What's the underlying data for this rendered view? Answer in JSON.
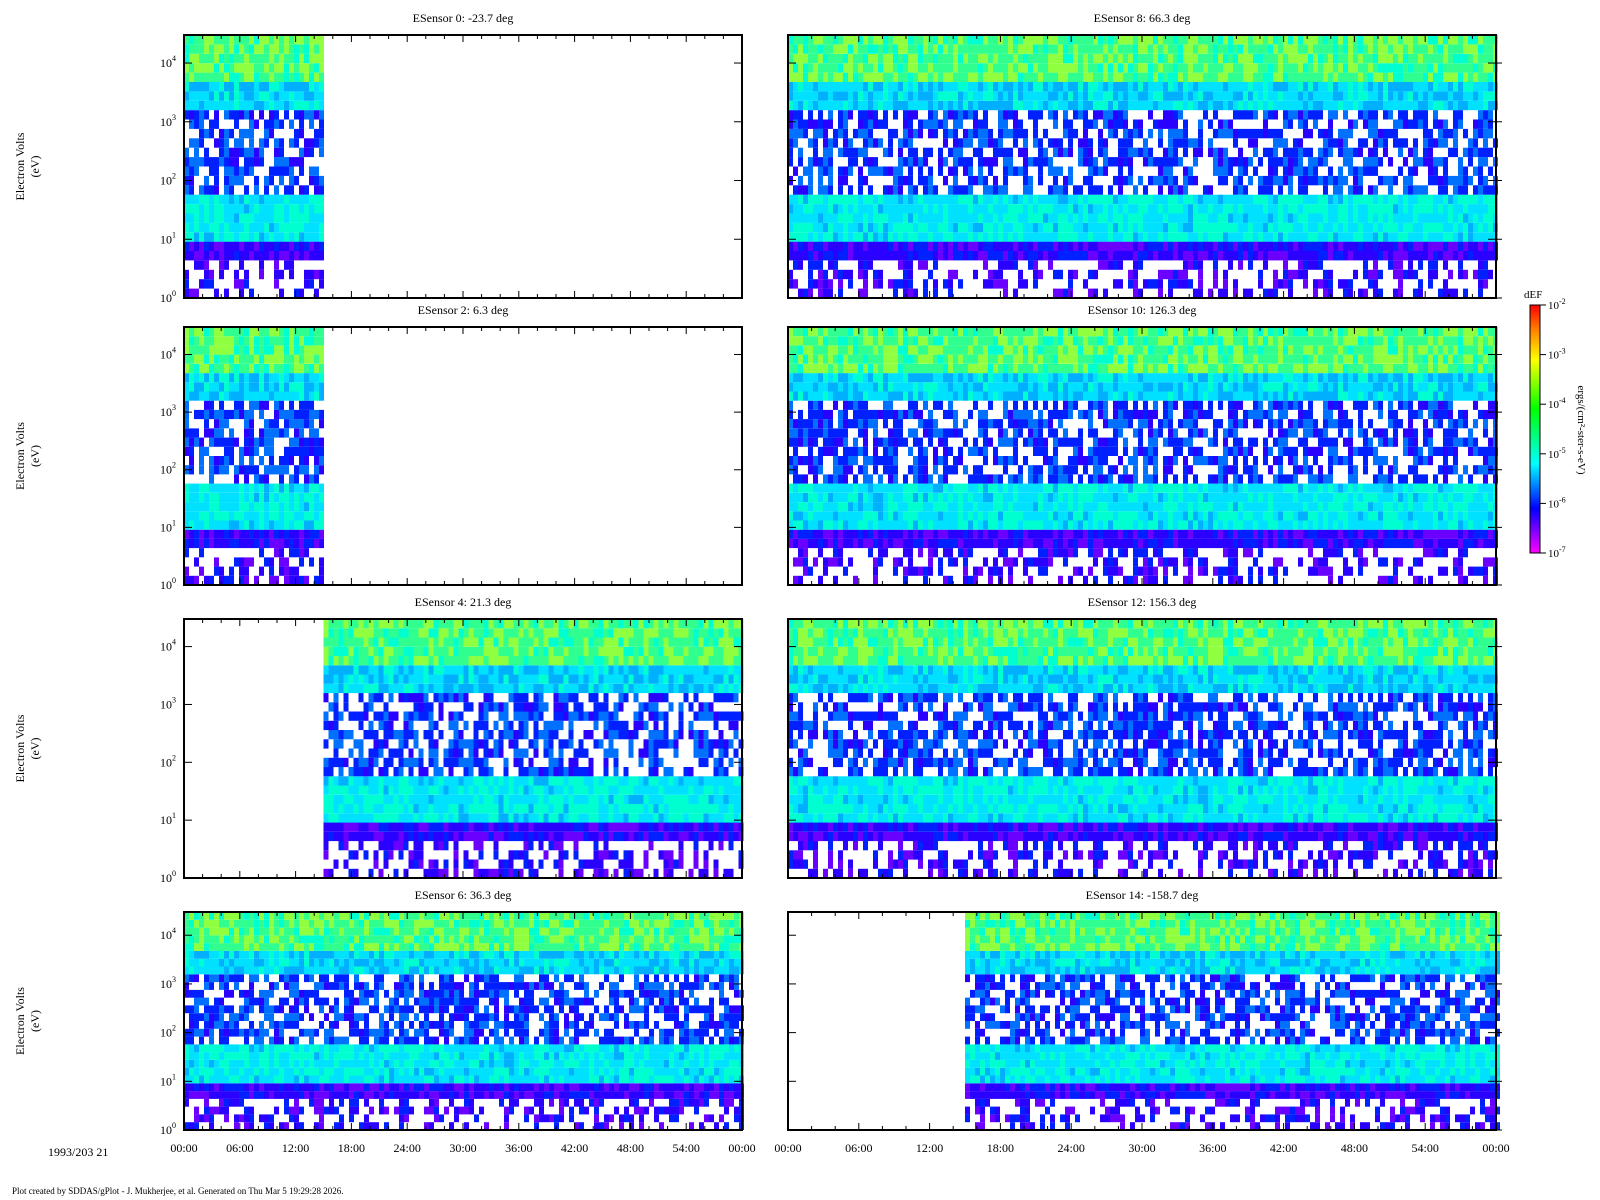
{
  "footer": "Plot created by SDDAS/gPlot - J. Mukherjee, et al.  Generated on Thu Mar 5 19:29:28 2026.",
  "date_label": "1993/203 21",
  "colorbar": {
    "title": "dEF",
    "unit": "ergs/(cm²-ster-s-eV)",
    "tick_labels": [
      "10-2",
      "10-3",
      "10-4",
      "10-5",
      "10-6",
      "10-7"
    ],
    "colors": [
      "#ff0000",
      "#ff8000",
      "#ffff00",
      "#00ff00",
      "#00ffff",
      "#0000ff",
      "#ff00ff"
    ]
  },
  "chart_data": [
    {
      "type": "heatmap",
      "title": "ESensor 0: -23.7 deg",
      "ylabel": "Electron Volts (eV)",
      "y_scale": "log",
      "ylim": [
        1,
        30000
      ],
      "y_ticks": [
        "10^0",
        "10^1",
        "10^2",
        "10^3",
        "10^4"
      ],
      "x_ticks": [
        "00:00",
        "06:00",
        "12:00",
        "18:00",
        "24:00",
        "30:00",
        "36:00",
        "42:00",
        "48:00",
        "54:00",
        "00:00"
      ],
      "data_span_minutes": [
        0,
        15
      ]
    },
    {
      "type": "heatmap",
      "title": "ESensor 2: 6.3 deg",
      "ylabel": "Electron Volts (eV)",
      "y_scale": "log",
      "ylim": [
        1,
        30000
      ],
      "y_ticks": [
        "10^0",
        "10^1",
        "10^2",
        "10^3",
        "10^4"
      ],
      "x_ticks": [
        "00:00",
        "06:00",
        "12:00",
        "18:00",
        "24:00",
        "30:00",
        "36:00",
        "42:00",
        "48:00",
        "54:00",
        "00:00"
      ],
      "data_span_minutes": [
        0,
        15
      ]
    },
    {
      "type": "heatmap",
      "title": "ESensor 4: 21.3 deg",
      "ylabel": "Electron Volts (eV)",
      "y_scale": "log",
      "ylim": [
        1,
        30000
      ],
      "y_ticks": [
        "10^0",
        "10^1",
        "10^2",
        "10^3",
        "10^4"
      ],
      "x_ticks": [
        "00:00",
        "06:00",
        "12:00",
        "18:00",
        "24:00",
        "30:00",
        "36:00",
        "42:00",
        "48:00",
        "54:00",
        "00:00"
      ],
      "data_span_minutes": [
        15,
        60
      ]
    },
    {
      "type": "heatmap",
      "title": "ESensor 6: 36.3 deg",
      "ylabel": "Electron Volts (eV)",
      "y_scale": "log",
      "ylim": [
        1,
        30000
      ],
      "y_ticks": [
        "10^0",
        "10^1",
        "10^2",
        "10^3",
        "10^4"
      ],
      "x_ticks": [
        "00:00",
        "06:00",
        "12:00",
        "18:00",
        "24:00",
        "30:00",
        "36:00",
        "42:00",
        "48:00",
        "54:00",
        "00:00"
      ],
      "data_span_minutes": [
        0,
        60
      ]
    },
    {
      "type": "heatmap",
      "title": "ESensor 8: 66.3 deg",
      "y_scale": "log",
      "ylim": [
        1,
        30000
      ],
      "x_ticks": [
        "00:00",
        "06:00",
        "12:00",
        "18:00",
        "24:00",
        "30:00",
        "36:00",
        "42:00",
        "48:00",
        "54:00",
        "00:00"
      ],
      "data_span_minutes": [
        0,
        60
      ]
    },
    {
      "type": "heatmap",
      "title": "ESensor 10: 126.3 deg",
      "y_scale": "log",
      "ylim": [
        1,
        30000
      ],
      "x_ticks": [
        "00:00",
        "06:00",
        "12:00",
        "18:00",
        "24:00",
        "30:00",
        "36:00",
        "42:00",
        "48:00",
        "54:00",
        "00:00"
      ],
      "data_span_minutes": [
        0,
        60
      ]
    },
    {
      "type": "heatmap",
      "title": "ESensor 12: 156.3 deg",
      "y_scale": "log",
      "ylim": [
        1,
        30000
      ],
      "x_ticks": [
        "00:00",
        "06:00",
        "12:00",
        "18:00",
        "24:00",
        "30:00",
        "36:00",
        "42:00",
        "48:00",
        "54:00",
        "00:00"
      ],
      "data_span_minutes": [
        0,
        60
      ]
    },
    {
      "type": "heatmap",
      "title": "ESensor 14: -158.7 deg",
      "y_scale": "log",
      "ylim": [
        1,
        30000
      ],
      "x_ticks": [
        "00:00",
        "06:00",
        "12:00",
        "18:00",
        "24:00",
        "30:00",
        "36:00",
        "42:00",
        "48:00",
        "54:00",
        "00:00"
      ],
      "data_span_minutes": [
        15,
        60
      ]
    }
  ]
}
